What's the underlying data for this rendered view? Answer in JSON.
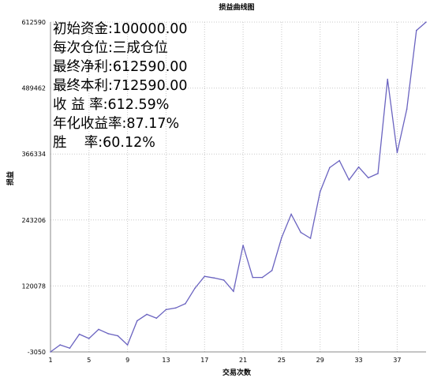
{
  "chart_data": {
    "type": "line",
    "title": "损益曲线图",
    "xlabel": "交易次数",
    "ylabel": "损益",
    "x_ticks": [
      1,
      5,
      9,
      13,
      17,
      21,
      25,
      29,
      33,
      37
    ],
    "y_ticks": [
      "-3050",
      "120078",
      "243206",
      "366334",
      "489462",
      "612590"
    ],
    "xlim": [
      1,
      40
    ],
    "ylim": [
      -3050,
      612590
    ],
    "grid": true,
    "series_color": "#6a63c0",
    "x": [
      1,
      2,
      3,
      4,
      5,
      6,
      7,
      8,
      9,
      10,
      11,
      12,
      13,
      14,
      15,
      16,
      17,
      18,
      19,
      20,
      21,
      22,
      23,
      24,
      25,
      26,
      27,
      28,
      29,
      30,
      31,
      32,
      33,
      34,
      35,
      36,
      37,
      38,
      39,
      40
    ],
    "values": [
      -3050,
      10000,
      4000,
      30000,
      22000,
      39000,
      31000,
      27000,
      10000,
      55000,
      67000,
      60000,
      76000,
      79000,
      87000,
      116000,
      138000,
      135000,
      131000,
      110000,
      196000,
      136000,
      136000,
      149000,
      210000,
      254000,
      220000,
      209000,
      296000,
      341000,
      354000,
      318000,
      342000,
      322000,
      330000,
      506000,
      369000,
      450000,
      597000,
      612590
    ]
  },
  "stats": [
    "初始资金:100000.00",
    "每次仓位:三成仓位",
    "最终净利:612590.00",
    "最终本利:712590.00",
    "收 益 率:612.59%",
    "年化收益率:87.17%",
    "胜    率:60.12%"
  ]
}
